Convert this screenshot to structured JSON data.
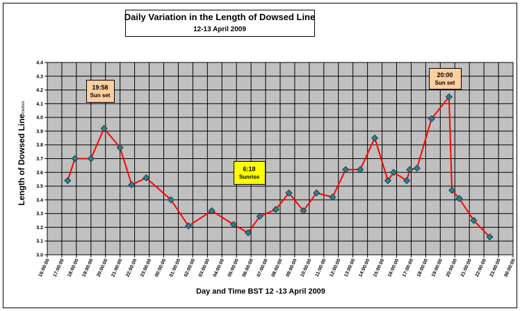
{
  "chart_data": {
    "type": "line",
    "title": "Daily Variation in the Length of Dowsed Line",
    "subtitle": "12-13 April 2009",
    "x_label": "Day and Time  BST 12 -13 April 2009",
    "y_label": "Length of Dowsed Line",
    "y_unit": "metres",
    "annotations": [
      {
        "time": "19:58",
        "event": "Sun set"
      },
      {
        "time": "6:18",
        "event": "Sunrise"
      },
      {
        "time": "20:00",
        "event": "Sun set"
      }
    ],
    "x": [
      17.4,
      17.9,
      19.0,
      19.9,
      21.0,
      21.8,
      22.8,
      24.5,
      25.7,
      27.3,
      28.8,
      29.8,
      30.6,
      31.7,
      32.6,
      33.6,
      34.5,
      35.6,
      36.5,
      37.5,
      38.5,
      39.4,
      39.8,
      40.7,
      40.9,
      41.4,
      42.4,
      43.6,
      43.8,
      44.3,
      45.3,
      46.4
    ],
    "series": [
      {
        "name": "Length",
        "color": "#ff0000",
        "marker_color": "#2e7f86",
        "values": [
          3.54,
          3.7,
          3.7,
          3.92,
          3.78,
          3.51,
          3.56,
          3.4,
          3.21,
          3.32,
          3.22,
          3.16,
          3.28,
          3.33,
          3.45,
          3.32,
          3.45,
          3.42,
          3.62,
          3.62,
          3.85,
          3.54,
          3.6,
          3.54,
          3.62,
          3.63,
          3.99,
          4.15,
          3.47,
          3.41,
          3.25,
          3.13
        ]
      }
    ],
    "xlim": [
      16,
      48
    ],
    "xticks": [
      {
        "value": 16,
        "label": "16:00:00"
      },
      {
        "value": 17,
        "label": "17:00:00"
      },
      {
        "value": 18,
        "label": "18:00:00"
      },
      {
        "value": 19,
        "label": "19:00:00"
      },
      {
        "value": 20,
        "label": "20:00:00"
      },
      {
        "value": 21,
        "label": "21:00:00"
      },
      {
        "value": 22,
        "label": "22:00:00"
      },
      {
        "value": 23,
        "label": "23:00:00"
      },
      {
        "value": 24,
        "label": "00:00:00"
      },
      {
        "value": 25,
        "label": "01:00:00"
      },
      {
        "value": 26,
        "label": "02:00:00"
      },
      {
        "value": 27,
        "label": "03:00:00"
      },
      {
        "value": 28,
        "label": "04:00:00"
      },
      {
        "value": 29,
        "label": "05:00:00"
      },
      {
        "value": 30,
        "label": "06:00:00"
      },
      {
        "value": 31,
        "label": "07:00:00"
      },
      {
        "value": 32,
        "label": "08:00:00"
      },
      {
        "value": 33,
        "label": "09:00:00"
      },
      {
        "value": 34,
        "label": "10:00:00"
      },
      {
        "value": 35,
        "label": "11:00:00"
      },
      {
        "value": 36,
        "label": "12:00:00"
      },
      {
        "value": 37,
        "label": "13:00:00"
      },
      {
        "value": 38,
        "label": "14:00:00"
      },
      {
        "value": 39,
        "label": "15:00:00"
      },
      {
        "value": 40,
        "label": "16:00:00"
      },
      {
        "value": 41,
        "label": "17:00:00"
      },
      {
        "value": 42,
        "label": "18:00:00"
      },
      {
        "value": 43,
        "label": "19:00:00"
      },
      {
        "value": 44,
        "label": "20:00:00"
      },
      {
        "value": 45,
        "label": "21:00:00"
      },
      {
        "value": 46,
        "label": "22:00:00"
      },
      {
        "value": 47,
        "label": "23:00:00"
      },
      {
        "value": 48,
        "label": "00:00:00"
      }
    ],
    "ylim": [
      3.0,
      4.4
    ],
    "yticks": [
      {
        "value": 3.0,
        "label": "3.0"
      },
      3.1,
      3.2,
      3.3,
      3.4,
      3.5,
      3.6,
      3.7,
      3.8,
      3.9,
      {
        "value": 4.0,
        "label": "4.0"
      },
      4.1,
      4.2,
      4.3,
      4.4
    ],
    "grid": true,
    "plot_background": "#c0c0c0"
  }
}
